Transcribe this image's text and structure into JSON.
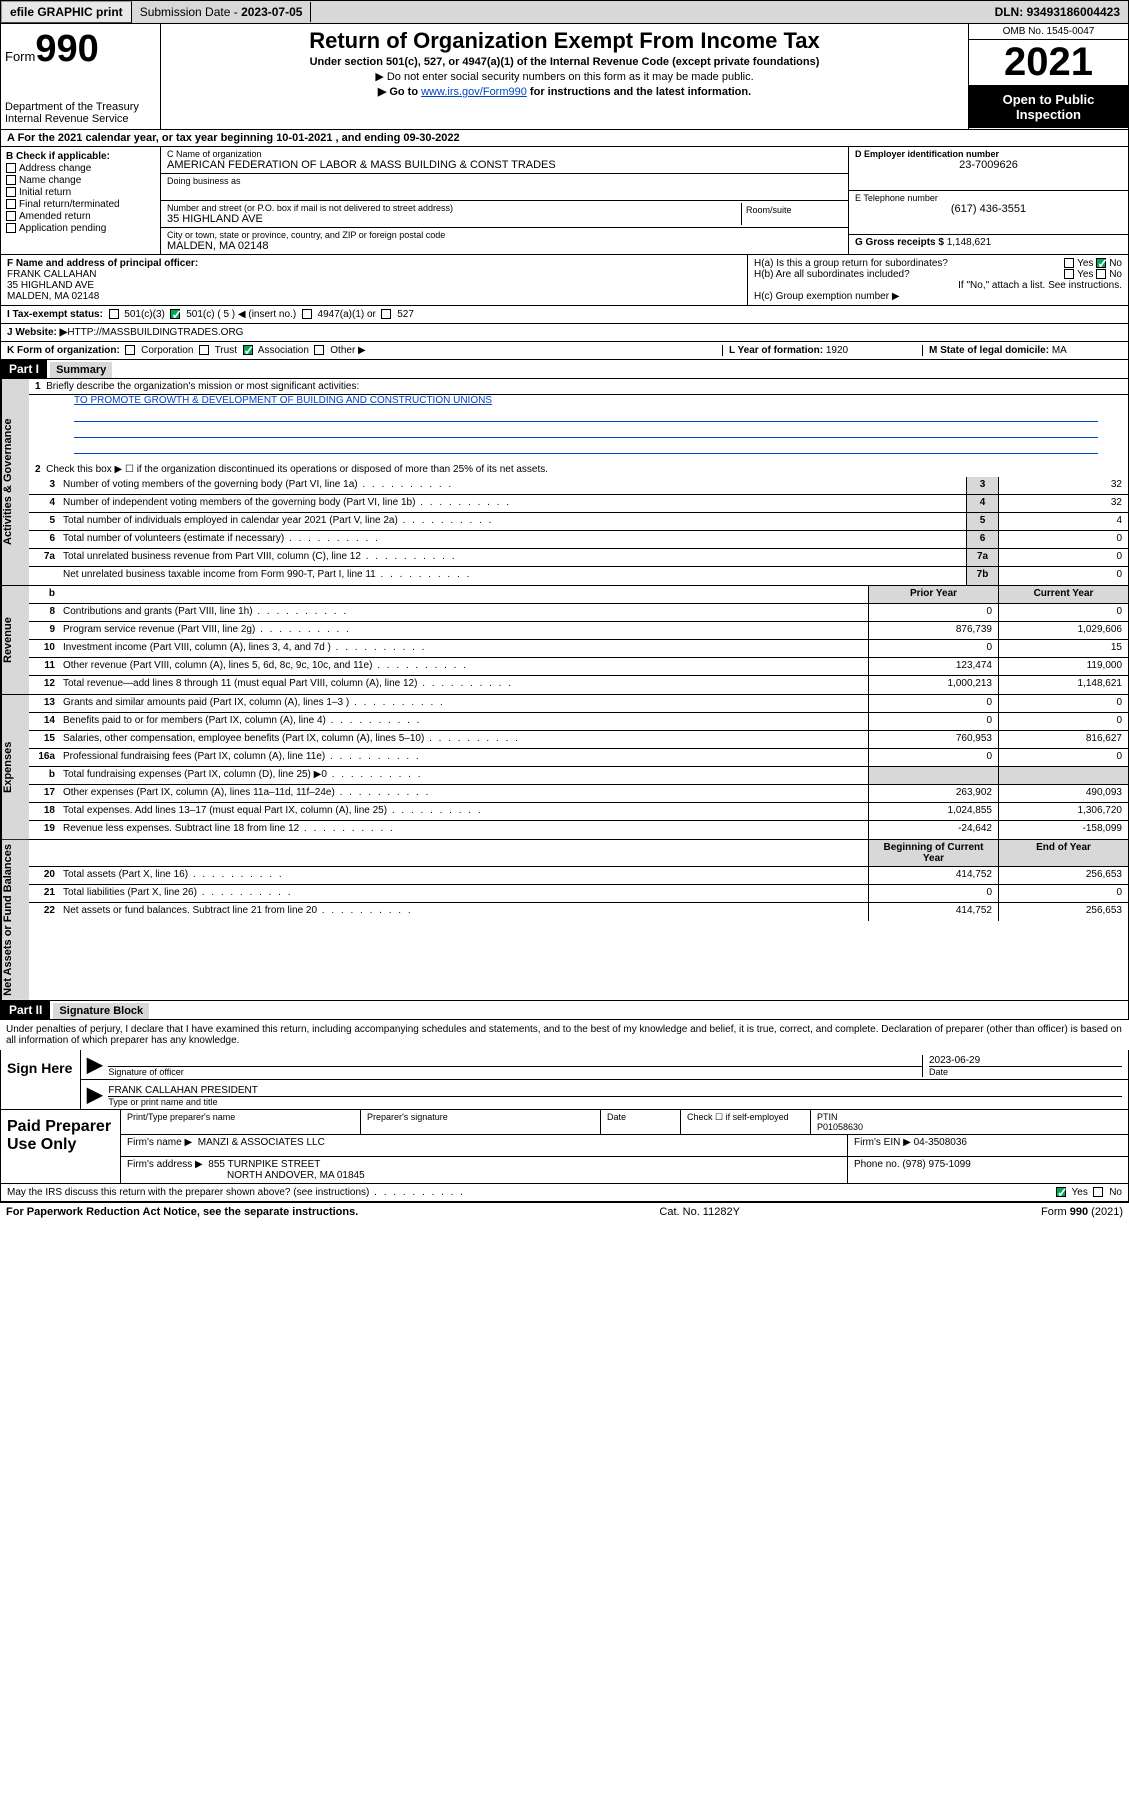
{
  "topbar": {
    "efile": "efile GRAPHIC print",
    "sub_label": "Submission Date - ",
    "sub_date": "2023-07-05",
    "dln_label": "DLN: ",
    "dln": "93493186004423"
  },
  "header": {
    "form_word": "Form",
    "form_num": "990",
    "dept": "Department of the Treasury",
    "irs": "Internal Revenue Service",
    "title": "Return of Organization Exempt From Income Tax",
    "subtitle": "Under section 501(c), 527, or 4947(a)(1) of the Internal Revenue Code (except private foundations)",
    "note1": "▶ Do not enter social security numbers on this form as it may be made public.",
    "note2_pre": "▶ Go to ",
    "note2_link": "www.irs.gov/Form990",
    "note2_post": " for instructions and the latest information.",
    "omb": "OMB No. 1545-0047",
    "year": "2021",
    "open": "Open to Public Inspection"
  },
  "row_a": "A For the 2021 calendar year, or tax year beginning 10-01-2021   , and ending 09-30-2022",
  "col_b": {
    "label": "B Check if applicable:",
    "items": [
      "Address change",
      "Name change",
      "Initial return",
      "Final return/terminated",
      "Amended return",
      "Application pending"
    ]
  },
  "col_c": {
    "name_label": "C Name of organization",
    "name": "AMERICAN FEDERATION OF LABOR & MASS BUILDING & CONST TRADES",
    "dba_label": "Doing business as",
    "addr_label": "Number and street (or P.O. box if mail is not delivered to street address)",
    "room_label": "Room/suite",
    "addr": "35 HIGHLAND AVE",
    "city_label": "City or town, state or province, country, and ZIP or foreign postal code",
    "city": "MALDEN, MA  02148"
  },
  "col_d": {
    "ein_label": "D Employer identification number",
    "ein": "23-7009626",
    "tel_label": "E Telephone number",
    "tel": "(617) 436-3551",
    "gross_label": "G Gross receipts $ ",
    "gross": "1,148,621"
  },
  "row_f": {
    "label": "F Name and address of principal officer:",
    "name": "FRANK CALLAHAN",
    "addr": "35 HIGHLAND AVE",
    "city": "MALDEN, MA  02148"
  },
  "row_h": {
    "a": "H(a)  Is this a group return for subordinates?",
    "b": "H(b)  Are all subordinates included?",
    "b_note": "If \"No,\" attach a list. See instructions.",
    "c": "H(c)  Group exemption number ▶",
    "yes": "Yes",
    "no": "No"
  },
  "row_i": {
    "label": "I  Tax-exempt status:",
    "c3": "501(c)(3)",
    "c5": "501(c) ( 5 ) ◀ (insert no.)",
    "a1": "4947(a)(1) or",
    "s527": "527"
  },
  "row_j": {
    "label": "J  Website: ▶",
    "val": " HTTP://MASSBUILDINGTRADES.ORG"
  },
  "row_k": {
    "label": "K Form of organization:",
    "corp": "Corporation",
    "trust": "Trust",
    "assoc": "Association",
    "other": "Other ▶"
  },
  "row_l": {
    "label": "L Year of formation: ",
    "val": "1920"
  },
  "row_m": {
    "label": "M State of legal domicile: ",
    "val": "MA"
  },
  "part1": {
    "hdr": "Part I",
    "title": "Summary"
  },
  "line1": {
    "num": "1",
    "text": "Briefly describe the organization's mission or most significant activities:",
    "mission": "TO PROMOTE GROWTH & DEVELOPMENT OF BUILDING AND CONSTRUCTION UNIONS"
  },
  "line2": {
    "num": "2",
    "text": "Check this box ▶ ☐  if the organization discontinued its operations or disposed of more than 25% of its net assets."
  },
  "sections": {
    "governance": "Activities & Governance",
    "revenue": "Revenue",
    "expenses": "Expenses",
    "netassets": "Net Assets or Fund Balances"
  },
  "gov_rows": [
    {
      "n": "3",
      "d": "Number of voting members of the governing body (Part VI, line 1a)",
      "k": "3",
      "v": "32"
    },
    {
      "n": "4",
      "d": "Number of independent voting members of the governing body (Part VI, line 1b)",
      "k": "4",
      "v": "32"
    },
    {
      "n": "5",
      "d": "Total number of individuals employed in calendar year 2021 (Part V, line 2a)",
      "k": "5",
      "v": "4"
    },
    {
      "n": "6",
      "d": "Total number of volunteers (estimate if necessary)",
      "k": "6",
      "v": "0"
    },
    {
      "n": "7a",
      "d": "Total unrelated business revenue from Part VIII, column (C), line 12",
      "k": "7a",
      "v": "0"
    },
    {
      "n": "",
      "d": "Net unrelated business taxable income from Form 990-T, Part I, line 11",
      "k": "7b",
      "v": "0"
    }
  ],
  "col_hdrs": {
    "b": "b",
    "prior": "Prior Year",
    "current": "Current Year",
    "boy": "Beginning of Current Year",
    "eoy": "End of Year"
  },
  "rev_rows": [
    {
      "n": "8",
      "d": "Contributions and grants (Part VIII, line 1h)",
      "p": "0",
      "c": "0"
    },
    {
      "n": "9",
      "d": "Program service revenue (Part VIII, line 2g)",
      "p": "876,739",
      "c": "1,029,606"
    },
    {
      "n": "10",
      "d": "Investment income (Part VIII, column (A), lines 3, 4, and 7d )",
      "p": "0",
      "c": "15"
    },
    {
      "n": "11",
      "d": "Other revenue (Part VIII, column (A), lines 5, 6d, 8c, 9c, 10c, and 11e)",
      "p": "123,474",
      "c": "119,000"
    },
    {
      "n": "12",
      "d": "Total revenue—add lines 8 through 11 (must equal Part VIII, column (A), line 12)",
      "p": "1,000,213",
      "c": "1,148,621"
    }
  ],
  "exp_rows": [
    {
      "n": "13",
      "d": "Grants and similar amounts paid (Part IX, column (A), lines 1–3 )",
      "p": "0",
      "c": "0"
    },
    {
      "n": "14",
      "d": "Benefits paid to or for members (Part IX, column (A), line 4)",
      "p": "0",
      "c": "0"
    },
    {
      "n": "15",
      "d": "Salaries, other compensation, employee benefits (Part IX, column (A), lines 5–10)",
      "p": "760,953",
      "c": "816,627"
    },
    {
      "n": "16a",
      "d": "Professional fundraising fees (Part IX, column (A), line 11e)",
      "p": "0",
      "c": "0"
    },
    {
      "n": "b",
      "d": "Total fundraising expenses (Part IX, column (D), line 25) ▶0",
      "p": "",
      "c": "",
      "shade": true
    },
    {
      "n": "17",
      "d": "Other expenses (Part IX, column (A), lines 11a–11d, 11f–24e)",
      "p": "263,902",
      "c": "490,093"
    },
    {
      "n": "18",
      "d": "Total expenses. Add lines 13–17 (must equal Part IX, column (A), line 25)",
      "p": "1,024,855",
      "c": "1,306,720"
    },
    {
      "n": "19",
      "d": "Revenue less expenses. Subtract line 18 from line 12",
      "p": "-24,642",
      "c": "-158,099"
    }
  ],
  "na_rows": [
    {
      "n": "20",
      "d": "Total assets (Part X, line 16)",
      "p": "414,752",
      "c": "256,653"
    },
    {
      "n": "21",
      "d": "Total liabilities (Part X, line 26)",
      "p": "0",
      "c": "0"
    },
    {
      "n": "22",
      "d": "Net assets or fund balances. Subtract line 21 from line 20",
      "p": "414,752",
      "c": "256,653"
    }
  ],
  "part2": {
    "hdr": "Part II",
    "title": "Signature Block"
  },
  "sig": {
    "decl": "Under penalties of perjury, I declare that I have examined this return, including accompanying schedules and statements, and to the best of my knowledge and belief, it is true, correct, and complete. Declaration of preparer (other than officer) is based on all information of which preparer has any knowledge.",
    "here": "Sign Here",
    "officer": "Signature of officer",
    "date": "2023-06-29",
    "date_label": "Date",
    "name": "FRANK CALLAHAN  PRESIDENT",
    "name_label": "Type or print name and title"
  },
  "prep": {
    "title": "Paid Preparer Use Only",
    "name_label": "Print/Type preparer's name",
    "sig_label": "Preparer's signature",
    "date_label": "Date",
    "check_label": "Check ☐ if self-employed",
    "ptin_label": "PTIN",
    "ptin": "P01058630",
    "firm_label": "Firm's name    ▶",
    "firm": "MANZI & ASSOCIATES LLC",
    "ein_label": "Firm's EIN ▶ ",
    "ein": "04-3508036",
    "addr_label": "Firm's address ▶",
    "addr": "855 TURNPIKE STREET",
    "city": "NORTH ANDOVER, MA  01845",
    "phone_label": "Phone no. ",
    "phone": "(978) 975-1099"
  },
  "discuss": {
    "text": "May the IRS discuss this return with the preparer shown above? (see instructions)",
    "yes": "Yes",
    "no": "No"
  },
  "footer": {
    "left": "For Paperwork Reduction Act Notice, see the separate instructions.",
    "mid": "Cat. No. 11282Y",
    "right": "Form 990 (2021)"
  },
  "colors": {
    "link": "#0044cc",
    "shade": "#d8d8d8",
    "check": "#0a5"
  }
}
